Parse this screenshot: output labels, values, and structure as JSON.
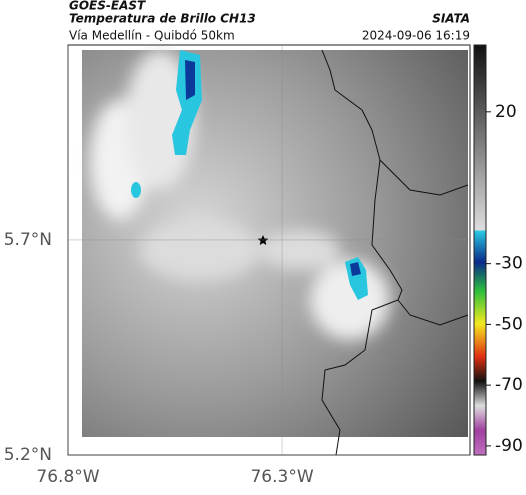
{
  "header": {
    "satellite": "GOES-EAST",
    "product": "Temperatura de Brillo CH13",
    "source": "SIATA",
    "region": "Vía Medellín - Quibdó 50km",
    "datetime": "2024-09-06 16:19"
  },
  "map": {
    "xlim": [
      -76.8,
      -75.861
    ],
    "ylim": [
      5.2,
      6.153
    ],
    "xticks": [
      {
        "value": -76.8,
        "label": "76.8°W"
      },
      {
        "value": -76.3,
        "label": "76.3°W"
      }
    ],
    "yticks": [
      {
        "value": 5.2,
        "label": "5.2°N"
      },
      {
        "value": 5.7,
        "label": "5.7°N"
      }
    ]
  },
  "colorbar": {
    "lim": [
      -93,
      42
    ],
    "ticks": [
      20,
      -30,
      -50,
      -70,
      -90
    ]
  }
}
